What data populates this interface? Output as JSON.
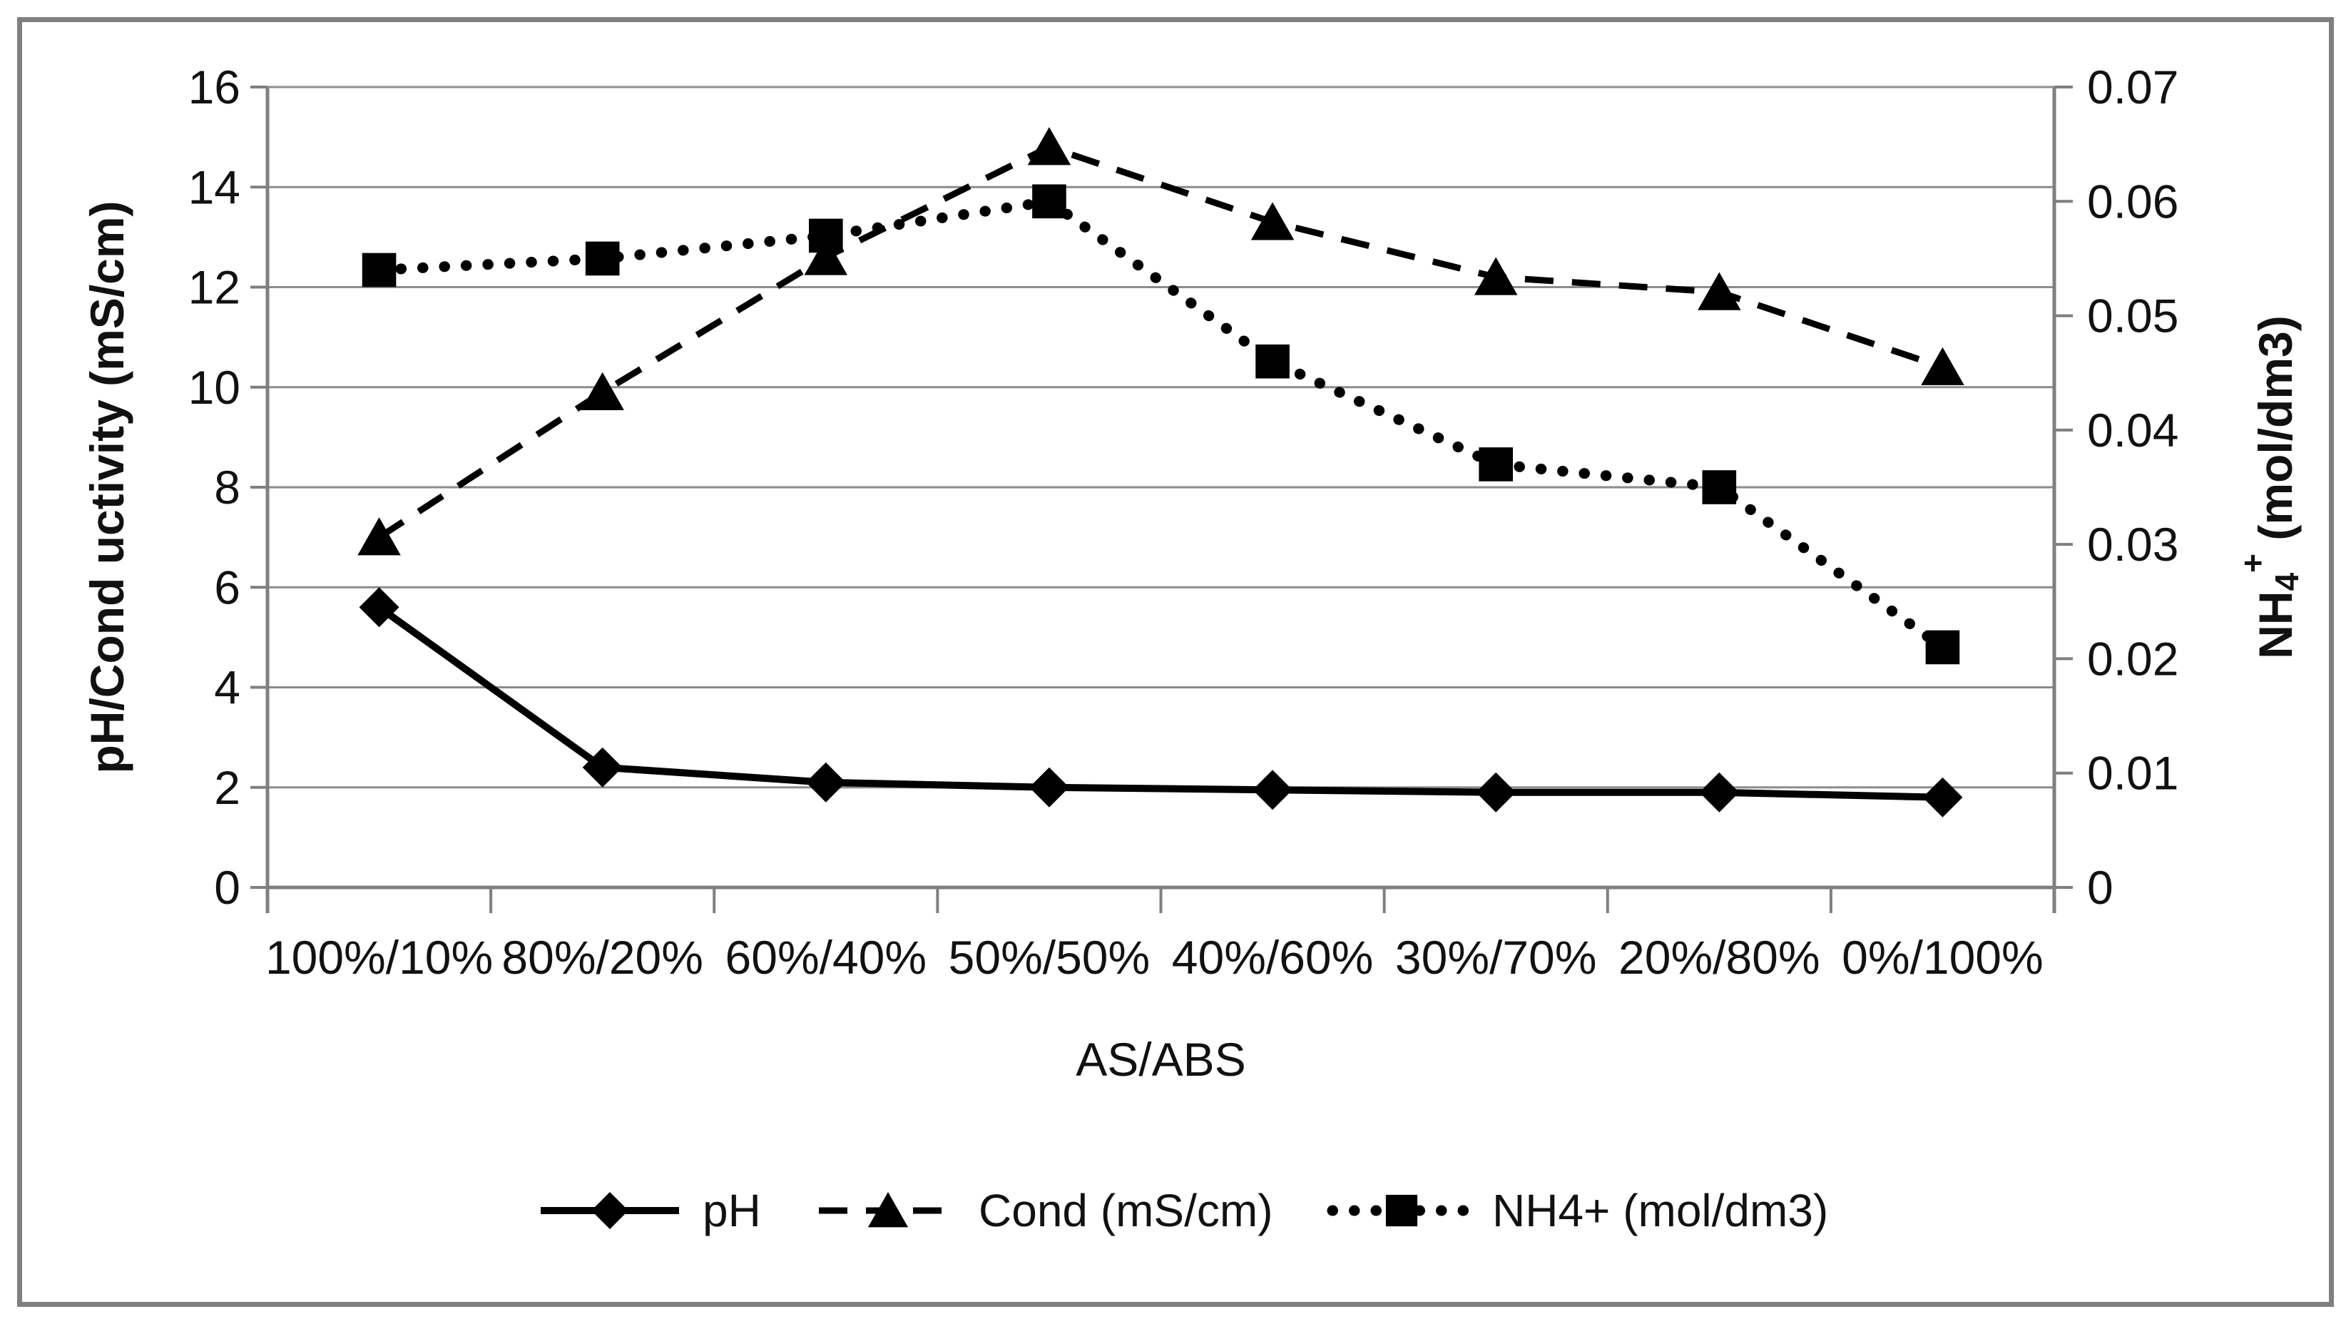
{
  "figure": {
    "background": "#ffffff",
    "border_color": "#808080",
    "text_color": "#111111",
    "grid_color": "#8c8c8c",
    "axis_color": "#7f7f7f",
    "series_color": "#000000"
  },
  "chart_data": {
    "type": "line",
    "categories": [
      "100%/10%",
      "80%/20%",
      "60%/40%",
      "50%/50%",
      "40%/60%",
      "30%/70%",
      "20%/80%",
      "0%/100%"
    ],
    "xlabel": "AS/ABS",
    "legend_position": "bottom",
    "grid": true,
    "left_axis": {
      "label": "pH/Cond uctivity (mS/cm)",
      "range": [
        0,
        16
      ],
      "ticks": [
        "0",
        "2",
        "4",
        "6",
        "8",
        "10",
        "12",
        "14",
        "16"
      ]
    },
    "right_axis": {
      "label_base": "NH",
      "label_sub": "4",
      "label_sup": "+",
      "label_rest": " (mol/dm3)",
      "range": [
        0,
        0.07
      ],
      "ticks": [
        "0",
        "0.01",
        "0.02",
        "0.03",
        "0.04",
        "0.05",
        "0.06",
        "0.07"
      ]
    },
    "series": [
      {
        "name": "pH",
        "axis": "left",
        "line": "solid",
        "marker": "diamond",
        "values": [
          5.6,
          2.4,
          2.1,
          2.0,
          1.95,
          1.9,
          1.9,
          1.8
        ]
      },
      {
        "name": "Cond (mS/cm)",
        "axis": "left",
        "line": "dashed",
        "marker": "triangle",
        "values": [
          7.0,
          9.9,
          12.6,
          14.8,
          13.3,
          12.2,
          11.9,
          10.4
        ]
      },
      {
        "name": "NH4+ (mol/dm3)",
        "axis": "right",
        "line": "dotted",
        "marker": "square",
        "values": [
          0.054,
          0.055,
          0.057,
          0.06,
          0.046,
          0.037,
          0.035,
          0.021
        ]
      }
    ]
  }
}
